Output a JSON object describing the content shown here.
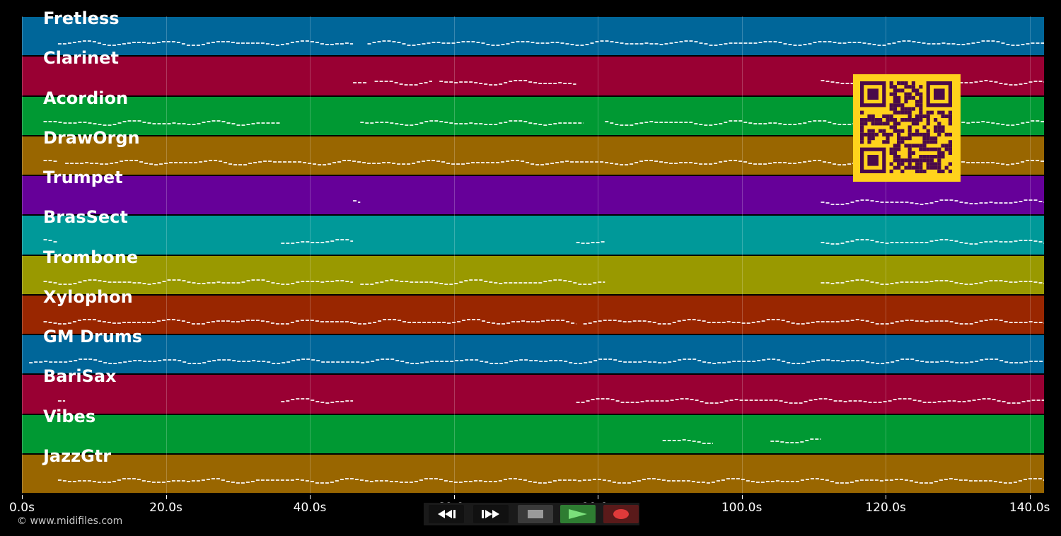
{
  "tracks": [
    {
      "name": "Fretless",
      "color": "#006699"
    },
    {
      "name": "Clarinet",
      "color": "#990033"
    },
    {
      "name": "Acordion",
      "color": "#009933"
    },
    {
      "name": "DrawOrgn",
      "color": "#996600"
    },
    {
      "name": "Trumpet",
      "color": "#660099"
    },
    {
      "name": "BrasSect",
      "color": "#009999"
    },
    {
      "name": "Trombone",
      "color": "#999900"
    },
    {
      "name": "Xylophon",
      "color": "#992600"
    },
    {
      "name": "GM Drums",
      "color": "#006699"
    },
    {
      "name": "BariSax",
      "color": "#990033"
    },
    {
      "name": "Vibes",
      "color": "#009933"
    },
    {
      "name": "JazzGtr",
      "color": "#996600"
    }
  ],
  "timeline": {
    "max_seconds": 142,
    "ticks": [
      {
        "label": "0.0s",
        "seconds": 0
      },
      {
        "label": "20.0s",
        "seconds": 20
      },
      {
        "label": "40.0s",
        "seconds": 40
      },
      {
        "label": "60.0s",
        "seconds": 60
      },
      {
        "label": "80.0s",
        "seconds": 80
      },
      {
        "label": "100.0s",
        "seconds": 100
      },
      {
        "label": "120.0s",
        "seconds": 120
      },
      {
        "label": "140.0s",
        "seconds": 140
      }
    ]
  },
  "note_segments": [
    [
      [
        5,
        46
      ],
      [
        48,
        142
      ]
    ],
    [
      [
        46,
        48
      ],
      [
        49,
        57
      ],
      [
        58,
        77
      ],
      [
        111,
        142
      ]
    ],
    [
      [
        3,
        36
      ],
      [
        47,
        78
      ],
      [
        81,
        142
      ]
    ],
    [
      [
        3,
        5
      ],
      [
        6,
        142
      ]
    ],
    [
      [
        46,
        47
      ],
      [
        111,
        142
      ]
    ],
    [
      [
        3,
        5
      ],
      [
        36,
        46
      ],
      [
        77,
        81
      ],
      [
        111,
        142
      ]
    ],
    [
      [
        3,
        36
      ],
      [
        36,
        46
      ],
      [
        47,
        81
      ],
      [
        111,
        142
      ]
    ],
    [
      [
        3,
        5
      ],
      [
        5,
        46
      ],
      [
        46,
        77
      ],
      [
        78,
        142
      ]
    ],
    [
      [
        1,
        142
      ]
    ],
    [
      [
        5,
        6
      ],
      [
        36,
        46
      ],
      [
        77,
        142
      ]
    ],
    [
      [
        89,
        96
      ],
      [
        104,
        111
      ]
    ],
    [
      [
        5,
        142
      ]
    ]
  ],
  "footer": {
    "copyright": "© www.midifiles.com"
  },
  "controls": {
    "rewind_icon": "rewind-icon",
    "fastforward_icon": "fast-forward-icon",
    "stop_icon": "stop-icon",
    "play_icon": "play-icon",
    "record_icon": "record-icon",
    "colors": {
      "play_bg": "#2e7d32",
      "record_bg": "#5a1a1a",
      "stop_bg": "#3a3a3a"
    }
  },
  "qr": {
    "color_bg": "#ffd21c",
    "color_fg": "#4a0a4a"
  }
}
